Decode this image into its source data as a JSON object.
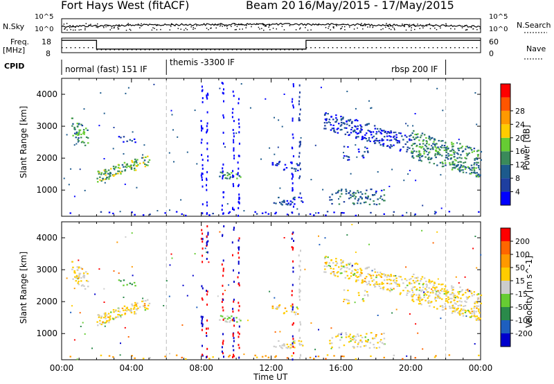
{
  "header": {
    "title": "Fort Hays West (fitACF)",
    "beam": "Beam 20",
    "date_range": "16/May/2015 - 17/May/2015"
  },
  "labels": {
    "nsky": "N.Sky",
    "nsearch": "N.Search",
    "freq": "Freq.",
    "freq_unit": "[MHz]",
    "nave": "Nave",
    "cpid": "CPID",
    "nsky_top": "10^5",
    "nsky_bottom": "10^0",
    "freq_top": "18",
    "freq_bottom": "8",
    "nave_top": "60",
    "nave_bottom": "0"
  },
  "cpid_modes": [
    {
      "label": "normal (fast) 151 IF",
      "start": 0,
      "end": 6
    },
    {
      "label": "themis -3300 IF",
      "start": 6,
      "end": 22
    },
    {
      "label": "rbsp 200 IF",
      "start": 22,
      "end": 24
    }
  ],
  "colors": {
    "power": [
      "#0000ff",
      "#1e3fa0",
      "#1c5a8c",
      "#3a8a5a",
      "#66cc33",
      "#ffcc00",
      "#ff9900",
      "#ff5500",
      "#ff0000"
    ],
    "velocity": [
      "#ff0000",
      "#ff6600",
      "#ff9900",
      "#ffcc00",
      "#cccccc",
      "#66cc33",
      "#2a8a4a",
      "#1e5fbf",
      "#0000cc"
    ]
  },
  "chart_data": [
    {
      "type": "line",
      "name": "nsky-nsearch",
      "x_range": [
        0,
        24
      ],
      "ylabels": [
        "10^5",
        "10^0"
      ]
    },
    {
      "type": "line",
      "name": "freq-nave",
      "x_range": [
        0,
        24
      ],
      "freq_segments": [
        {
          "start": 0,
          "end": 2,
          "freq": 16.5
        },
        {
          "start": 2,
          "end": 14,
          "freq": 10.5
        },
        {
          "start": 14,
          "end": 24,
          "freq": 16.5
        }
      ],
      "ylim_freq": [
        8,
        18
      ],
      "ylim_nave": [
        0,
        60
      ]
    },
    {
      "type": "heatmap",
      "name": "power",
      "xlabel": "",
      "ylabel": "Slant Range [km]",
      "x_range": [
        0,
        24
      ],
      "ylim": [
        180,
        4500
      ],
      "yticks": [
        1000,
        2000,
        3000,
        4000
      ],
      "colorbar_label": "Power [dB]",
      "colorbar_ticks": [
        "4",
        "8",
        "12",
        "16",
        "20",
        "24",
        "28"
      ]
    },
    {
      "type": "heatmap",
      "name": "velocity",
      "xlabel": "Time UT",
      "ylabel": "Slant Range [km]",
      "x_range": [
        0,
        24
      ],
      "ylim": [
        180,
        4500
      ],
      "yticks": [
        1000,
        2000,
        3000,
        4000
      ],
      "xticks": [
        "00:00",
        "04:00",
        "08:00",
        "12:00",
        "16:00",
        "20:00",
        "00:00"
      ],
      "colorbar_label": "Velocity [m s^-1]",
      "colorbar_ticks": [
        "200",
        "100",
        "50",
        "15",
        "-15",
        "-50",
        "-100",
        "-200"
      ]
    }
  ],
  "echo_regions": [
    {
      "t0": 0.5,
      "t1": 1.5,
      "r0": 2650,
      "r1": 3350,
      "density": 0.55,
      "pw": 3,
      "vel": 4,
      "slope": -300
    },
    {
      "t0": 2.0,
      "t1": 5.0,
      "r0": 1250,
      "r1": 1600,
      "density": 0.8,
      "pw": 4,
      "vel": 4,
      "slope": 180
    },
    {
      "t0": 3.0,
      "t1": 4.2,
      "r0": 2500,
      "r1": 2700,
      "density": 0.3,
      "pw": 1,
      "vel": 6,
      "slope": 0
    },
    {
      "t0": 9.0,
      "t1": 10.3,
      "r0": 1380,
      "r1": 1580,
      "density": 0.6,
      "pw": 3,
      "vel": 5,
      "slope": 0
    },
    {
      "t0": 12.0,
      "t1": 13.6,
      "r0": 1650,
      "r1": 1950,
      "density": 0.4,
      "pw": 1,
      "vel": 4,
      "slope": -40
    },
    {
      "t0": 12.0,
      "t1": 13.8,
      "r0": 550,
      "r1": 800,
      "density": 0.5,
      "pw": 1,
      "vel": 4,
      "slope": 0
    },
    {
      "t0": 15.0,
      "t1": 20.0,
      "r0": 2900,
      "r1": 3500,
      "density": 0.55,
      "pw": 1,
      "vel": 4,
      "slope": -150
    },
    {
      "t0": 20.0,
      "t1": 24.0,
      "r0": 2000,
      "r1": 2900,
      "density": 0.65,
      "pw": 3,
      "vel": 4,
      "slope": -150
    },
    {
      "t0": 15.3,
      "t1": 18.5,
      "r0": 550,
      "r1": 1050,
      "density": 0.4,
      "pw": 2,
      "vel": 4,
      "slope": 0
    },
    {
      "t0": 16.0,
      "t1": 17.5,
      "r0": 1900,
      "r1": 2400,
      "density": 0.2,
      "pw": 1,
      "vel": 4,
      "slope": 0
    },
    {
      "t0": 0.0,
      "t1": 24.0,
      "r0": 180,
      "r1": 350,
      "density": 0.12,
      "pw": 0,
      "vel": 3,
      "slope": 0
    }
  ],
  "scatter_columns": [
    {
      "t": 8.0,
      "pw": 0,
      "vel": 8
    },
    {
      "t": 8.3,
      "pw": 0,
      "vel": 0
    },
    {
      "t": 9.2,
      "pw": 0,
      "vel": 8
    },
    {
      "t": 9.8,
      "pw": 0,
      "vel": 0
    },
    {
      "t": 10.1,
      "pw": 0,
      "vel": 8
    },
    {
      "t": 13.2,
      "pw": 0,
      "vel": 8
    },
    {
      "t": 13.6,
      "pw": 1,
      "vel": 4
    }
  ]
}
